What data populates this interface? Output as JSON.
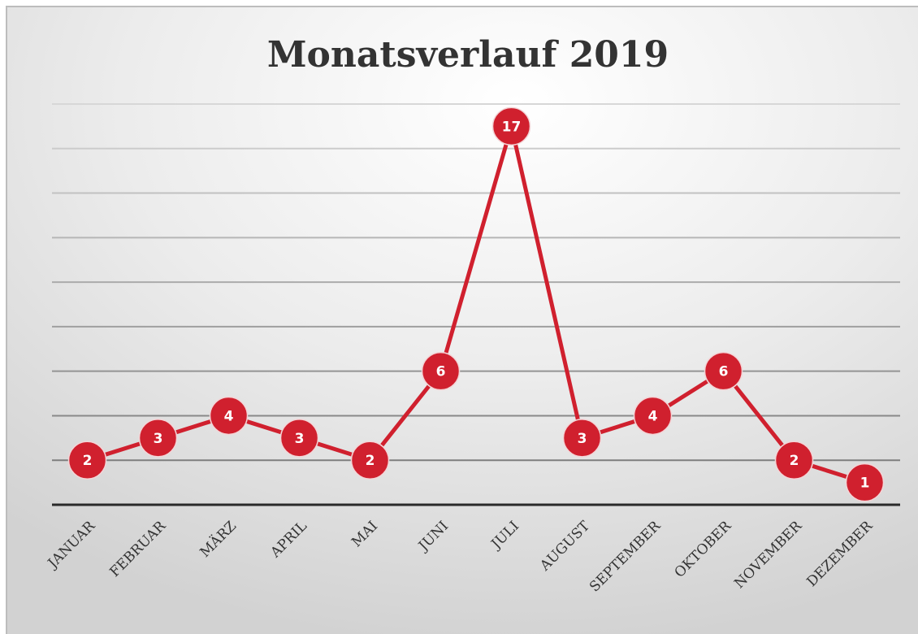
{
  "chart_data": {
    "type": "line",
    "title": "Monatsverlauf 2019",
    "categories": [
      "JANUAR",
      "FEBRUAR",
      "MÄRZ",
      "APRIL",
      "MAI",
      "JUNI",
      "JULI",
      "AUGUST",
      "SEPTEMBER",
      "OKTOBER",
      "NOVEMBER",
      "DEZEMBER"
    ],
    "values": [
      2,
      3,
      4,
      3,
      2,
      6,
      17,
      3,
      4,
      6,
      2,
      1
    ],
    "color": "#d0202e",
    "ylim": [
      0,
      18
    ],
    "yticks": [
      0,
      2,
      4,
      6,
      8,
      10,
      12,
      14,
      16,
      18
    ],
    "grid": true
  }
}
